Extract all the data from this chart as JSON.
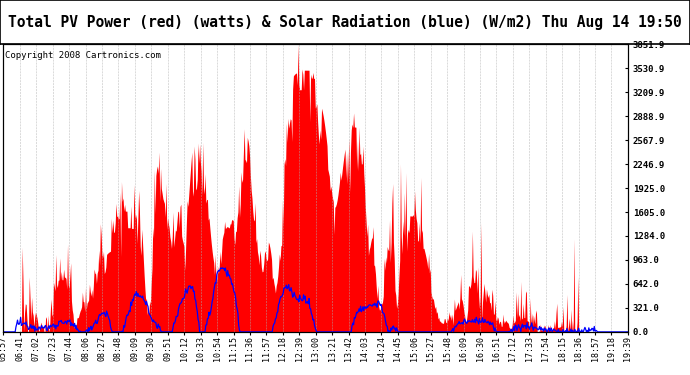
{
  "title": "Total PV Power (red) (watts) & Solar Radiation (blue) (W/m2) Thu Aug 14 19:50",
  "copyright": "Copyright 2008 Cartronics.com",
  "ylabel_right": [
    "0.0",
    "321.0",
    "642.0",
    "963.0",
    "1284.0",
    "1605.0",
    "1925.0",
    "2246.9",
    "2567.9",
    "2888.9",
    "3209.9",
    "3530.9",
    "3851.9"
  ],
  "ymax": 3851.9,
  "ymin": 0.0,
  "bg_color": "#ffffff",
  "plot_bg": "#ffffff",
  "grid_color": "#b0b0b0",
  "red_color": "#ff0000",
  "blue_color": "#0000ff",
  "x_labels": [
    "05:57",
    "06:41",
    "07:02",
    "07:23",
    "07:44",
    "08:06",
    "08:27",
    "08:48",
    "09:09",
    "09:30",
    "09:51",
    "10:12",
    "10:33",
    "10:54",
    "11:15",
    "11:36",
    "11:57",
    "12:18",
    "12:39",
    "13:00",
    "13:21",
    "13:42",
    "14:03",
    "14:24",
    "14:45",
    "15:06",
    "15:27",
    "15:48",
    "16:09",
    "16:30",
    "16:51",
    "17:12",
    "17:33",
    "17:54",
    "18:15",
    "18:36",
    "18:57",
    "19:18",
    "19:39"
  ],
  "title_fontsize": 10.5,
  "copyright_fontsize": 6.5,
  "tick_fontsize": 6.0
}
